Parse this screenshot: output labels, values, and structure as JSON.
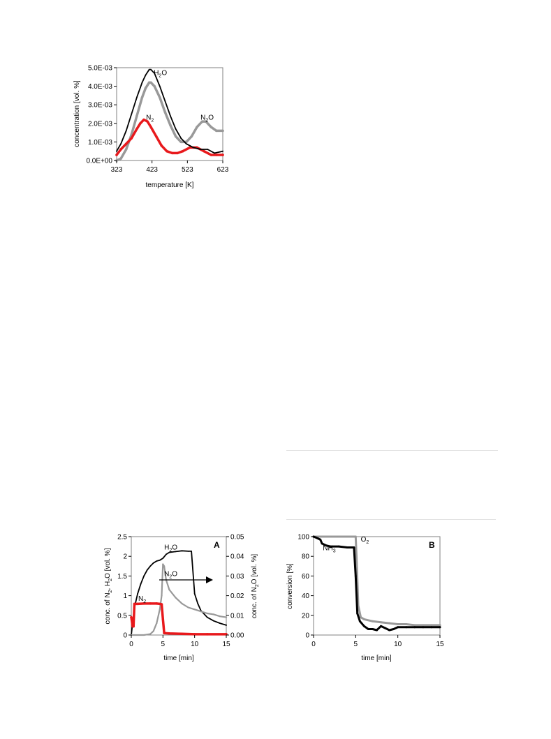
{
  "chart_data": [
    {
      "type": "line",
      "xlabel": "temperature [K]",
      "ylabel": "concentration [vol. %]",
      "xlim": [
        323,
        623
      ],
      "ylim": [
        0,
        0.005
      ],
      "x_ticks": [
        "323",
        "423",
        "523",
        "623"
      ],
      "y_ticks": [
        "0.0E+00",
        "1.0E-03",
        "2.0E-03",
        "3.0E-03",
        "4.0E-03",
        "5.0E-03"
      ],
      "grid": false,
      "colors": [
        "#000000",
        "#999999",
        "#e8191c"
      ],
      "annotations": [
        {
          "text": "H",
          "sub": "2",
          "post": "O",
          "x": 428,
          "y": 0.0046
        },
        {
          "text": "N",
          "sub": "2",
          "post": "O",
          "x": 560,
          "y": 0.0022
        },
        {
          "text": "N",
          "sub": "2",
          "post": "",
          "x": 406,
          "y": 0.0022
        }
      ],
      "series": [
        {
          "x": [
            323,
            335,
            350,
            365,
            380,
            395,
            405,
            415,
            420,
            430,
            445,
            460,
            475,
            490,
            505,
            520,
            540,
            560,
            580,
            600,
            623
          ],
          "values": [
            0.0005,
            0.0009,
            0.0016,
            0.0025,
            0.0034,
            0.0042,
            0.0046,
            0.0049,
            0.0049,
            0.0047,
            0.004,
            0.0032,
            0.0024,
            0.0017,
            0.0012,
            0.0009,
            0.0007,
            0.0006,
            0.0006,
            0.0004,
            0.0005
          ]
        },
        {
          "x": [
            323,
            335,
            350,
            365,
            380,
            395,
            405,
            415,
            420,
            430,
            445,
            460,
            475,
            490,
            505,
            520,
            535,
            550,
            565,
            575,
            590,
            605,
            623
          ],
          "values": [
            0.0,
            0.0001,
            0.0006,
            0.0014,
            0.0024,
            0.0034,
            0.0039,
            0.0042,
            0.0042,
            0.004,
            0.0034,
            0.0026,
            0.0019,
            0.0013,
            0.001,
            0.001,
            0.0013,
            0.0018,
            0.0021,
            0.0021,
            0.0018,
            0.0016,
            0.0016
          ]
        },
        {
          "x": [
            323,
            335,
            350,
            365,
            380,
            390,
            400,
            410,
            420,
            435,
            450,
            465,
            480,
            495,
            510,
            530,
            550,
            570,
            590,
            605,
            623
          ],
          "values": [
            0.0003,
            0.0006,
            0.0009,
            0.0012,
            0.0017,
            0.002,
            0.0022,
            0.0021,
            0.0018,
            0.0013,
            0.0008,
            0.0005,
            0.0004,
            0.0004,
            0.0005,
            0.0007,
            0.0007,
            0.0005,
            0.0003,
            0.0003,
            0.0003
          ]
        }
      ]
    },
    {
      "type": "line",
      "panel_label": "A",
      "xlabel": "time [min]",
      "ylabel_left": {
        "text": "conc. of N",
        "sub1": "2",
        "mid": ", H",
        "sub2": "2",
        "post": "O [vol. %]"
      },
      "ylabel_right": {
        "text": "conc. of N",
        "sub": "2",
        "post": "O [vol. %]"
      },
      "xlim": [
        0,
        15
      ],
      "ylim_left": [
        0,
        2.5
      ],
      "ylim_right": [
        0,
        0.05
      ],
      "x_ticks": [
        "0",
        "5",
        "10",
        "15"
      ],
      "y_ticks_left": [
        "0",
        "0.5",
        "1",
        "1.5",
        "2",
        "2.5"
      ],
      "y_ticks_right": [
        "0.00",
        "0.01",
        "0.02",
        "0.03",
        "0.04",
        "0.05"
      ],
      "grid": false,
      "colors": [
        "#000000",
        "#999999",
        "#e8191c"
      ],
      "annotations": [
        {
          "text": "H",
          "sub": "2",
          "post": "O",
          "x": 5.2,
          "y": 2.17
        },
        {
          "text": "N",
          "sub": "2",
          "post": "O",
          "x": 5.2,
          "y": 1.5
        },
        {
          "text": "N",
          "sub": "2",
          "post": "",
          "x": 1.1,
          "y": 0.87
        }
      ],
      "series": [
        {
          "axis": "left",
          "x": [
            0,
            0.2,
            0.5,
            1,
            1.5,
            2,
            2.5,
            3,
            3.5,
            4,
            4.5,
            5,
            5.5,
            6,
            7,
            8,
            9,
            9.5,
            10,
            10.5,
            11,
            12,
            13,
            14,
            15
          ],
          "values": [
            0,
            0.3,
            0.7,
            1.05,
            1.3,
            1.5,
            1.65,
            1.75,
            1.83,
            1.88,
            1.9,
            1.95,
            2.05,
            2.1,
            2.12,
            2.14,
            2.13,
            2.13,
            1.05,
            0.8,
            0.62,
            0.45,
            0.36,
            0.3,
            0.25
          ]
        },
        {
          "axis": "right",
          "x": [
            0,
            1,
            2,
            3,
            3.5,
            4,
            4.5,
            4.8,
            5,
            5.2,
            5.5,
            6,
            7,
            8,
            9,
            10,
            11,
            12,
            13,
            14,
            15
          ],
          "values": [
            0,
            0,
            0,
            0.0005,
            0.002,
            0.006,
            0.013,
            0.02,
            0.036,
            0.035,
            0.028,
            0.023,
            0.019,
            0.016,
            0.014,
            0.013,
            0.012,
            0.011,
            0.0105,
            0.0095,
            0.009
          ]
        },
        {
          "axis": "left",
          "x": [
            0,
            0.05,
            0.2,
            0.35,
            0.5,
            1,
            2,
            3,
            4,
            4.5,
            4.8,
            5,
            5.2,
            6,
            8,
            10,
            12,
            15
          ],
          "values": [
            0.45,
            0.4,
            0.22,
            0.22,
            0.79,
            0.79,
            0.8,
            0.8,
            0.8,
            0.79,
            0.78,
            0.4,
            0.05,
            0.04,
            0.03,
            0.02,
            0.02,
            0.02
          ]
        }
      ]
    },
    {
      "type": "line",
      "panel_label": "B",
      "xlabel": "time [min]",
      "ylabel": "conversion [%]",
      "xlim": [
        0,
        15
      ],
      "ylim": [
        0,
        100
      ],
      "x_ticks": [
        "0",
        "5",
        "10",
        "15"
      ],
      "y_ticks": [
        "0",
        "20",
        "40",
        "60",
        "80",
        "100"
      ],
      "grid": false,
      "colors": [
        "#000000",
        "#999999"
      ],
      "annotations": [
        {
          "text": "NH",
          "sub": "3",
          "post": "",
          "x": 1.1,
          "y": 86
        },
        {
          "text": "O",
          "sub": "2",
          "post": "",
          "x": 5.6,
          "y": 95
        }
      ],
      "series": [
        {
          "x": [
            0,
            0.3,
            0.8,
            1,
            1.5,
            2,
            3,
            4,
            4.8,
            5,
            5.2,
            5.5,
            6,
            6.5,
            7,
            7.5,
            8,
            8.5,
            9,
            9.5,
            10,
            11,
            12,
            13,
            14,
            15
          ],
          "values": [
            100,
            99,
            97,
            93,
            91,
            90,
            90,
            89,
            89,
            60,
            22,
            14,
            9,
            6,
            6,
            5,
            9,
            7,
            5,
            6,
            8,
            8,
            8,
            8,
            8,
            8
          ]
        },
        {
          "x": [
            0,
            1,
            2,
            3,
            4,
            5,
            5.1,
            5.3,
            5.6,
            6,
            7,
            8,
            9,
            10,
            11,
            12,
            13,
            14,
            15
          ],
          "values": [
            100,
            100,
            100,
            100,
            100,
            100,
            80,
            30,
            18,
            16,
            14,
            13,
            12,
            11,
            11,
            10,
            10,
            10,
            10
          ]
        }
      ]
    }
  ]
}
